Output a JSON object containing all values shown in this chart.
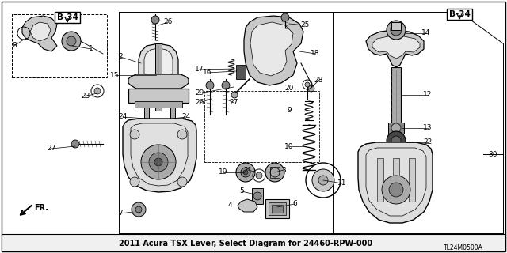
{
  "title": "2011 Acura TSX Lever, Select Diagram for 24460-RPW-000",
  "bg": "#ffffff",
  "lc": "#000000",
  "gray1": "#c8c8c8",
  "gray2": "#aaaaaa",
  "gray3": "#888888",
  "gray4": "#dddddd",
  "diagram_code": "TL24M0500A",
  "b34": "B-34",
  "fr": "FR.",
  "fs_label": 6.5,
  "fs_title": 7.0,
  "fs_b34": 7.5
}
